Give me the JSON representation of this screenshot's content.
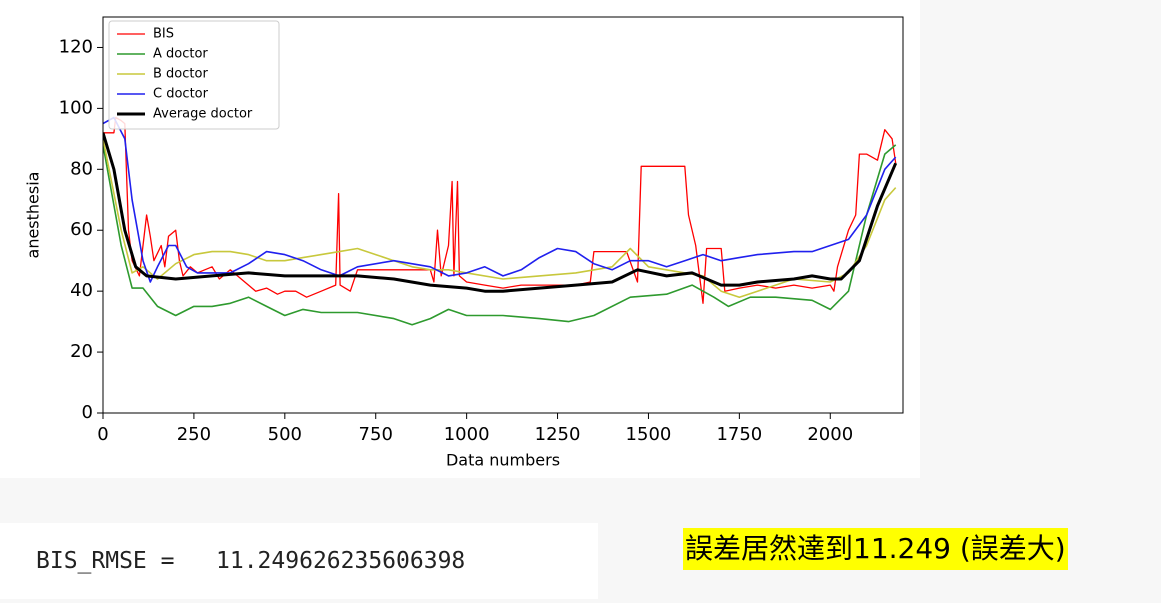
{
  "chart_data": {
    "type": "line",
    "xlabel": "Data numbers",
    "ylabel": "anesthesia",
    "xlim": [
      0,
      2200
    ],
    "ylim": [
      0,
      130
    ],
    "xticks": [
      0,
      250,
      500,
      750,
      1000,
      1250,
      1500,
      1750,
      2000
    ],
    "yticks": [
      0,
      20,
      40,
      60,
      80,
      100,
      120
    ],
    "legend": "upper left",
    "series": [
      {
        "name": "BIS",
        "color": "#ff0000",
        "width": 1.3,
        "x": [
          0,
          30,
          35,
          50,
          60,
          70,
          80,
          100,
          110,
          120,
          130,
          140,
          160,
          170,
          180,
          200,
          210,
          220,
          240,
          260,
          280,
          300,
          320,
          350,
          380,
          400,
          420,
          450,
          480,
          500,
          530,
          560,
          600,
          640,
          648,
          652,
          680,
          700,
          750,
          800,
          850,
          900,
          910,
          920,
          930,
          950,
          960,
          965,
          975,
          980,
          1000,
          1050,
          1100,
          1150,
          1200,
          1250,
          1300,
          1340,
          1350,
          1400,
          1440,
          1470,
          1480,
          1500,
          1600,
          1610,
          1630,
          1650,
          1660,
          1700,
          1710,
          1750,
          1800,
          1850,
          1900,
          1950,
          2000,
          2010,
          2020,
          2050,
          2070,
          2080,
          2100,
          2130,
          2150,
          2170,
          2180
        ],
        "values": [
          92,
          92,
          97,
          96,
          95,
          60,
          50,
          45,
          55,
          65,
          58,
          50,
          55,
          48,
          58,
          60,
          50,
          45,
          48,
          46,
          47,
          48,
          44,
          47,
          44,
          42,
          40,
          41,
          39,
          40,
          40,
          38,
          40,
          42,
          72,
          42,
          40,
          47,
          47,
          47,
          47,
          47,
          43,
          60,
          45,
          55,
          76,
          45,
          76,
          45,
          43,
          42,
          41,
          42,
          42,
          42,
          42,
          43,
          53,
          53,
          53,
          43,
          81,
          81,
          81,
          65,
          55,
          36,
          54,
          54,
          40,
          41,
          42,
          41,
          42,
          41,
          42,
          40,
          48,
          60,
          65,
          85,
          85,
          83,
          93,
          90,
          82
        ]
      },
      {
        "name": "A doctor",
        "color": "#2e9a2e",
        "width": 1.6,
        "x": [
          0,
          50,
          80,
          110,
          150,
          200,
          250,
          300,
          350,
          400,
          450,
          500,
          550,
          600,
          700,
          800,
          850,
          900,
          950,
          1000,
          1100,
          1200,
          1280,
          1350,
          1450,
          1550,
          1620,
          1680,
          1720,
          1780,
          1850,
          1950,
          2000,
          2050,
          2100,
          2150,
          2180
        ],
        "values": [
          88,
          55,
          41,
          41,
          35,
          32,
          35,
          35,
          36,
          38,
          35,
          32,
          34,
          33,
          33,
          31,
          29,
          31,
          34,
          32,
          32,
          31,
          30,
          32,
          38,
          39,
          42,
          38,
          35,
          38,
          38,
          37,
          34,
          40,
          65,
          85,
          88
        ]
      },
      {
        "name": "B doctor",
        "color": "#c8c83c",
        "width": 1.6,
        "x": [
          0,
          50,
          80,
          110,
          150,
          200,
          250,
          300,
          350,
          400,
          450,
          500,
          550,
          600,
          650,
          700,
          750,
          800,
          850,
          900,
          950,
          1000,
          1100,
          1200,
          1300,
          1400,
          1450,
          1500,
          1600,
          1650,
          1700,
          1750,
          1800,
          1900,
          2000,
          2050,
          2100,
          2150,
          2180
        ],
        "values": [
          90,
          60,
          46,
          48,
          44,
          49,
          52,
          53,
          53,
          52,
          50,
          50,
          51,
          52,
          53,
          54,
          52,
          50,
          48,
          47,
          47,
          46,
          44,
          45,
          46,
          48,
          54,
          48,
          46,
          45,
          40,
          38,
          40,
          44,
          43,
          46,
          55,
          70,
          74
        ]
      },
      {
        "name": "C doctor",
        "color": "#2020ee",
        "width": 1.6,
        "x": [
          0,
          30,
          60,
          80,
          110,
          130,
          150,
          180,
          200,
          230,
          260,
          300,
          350,
          400,
          450,
          500,
          550,
          600,
          650,
          700,
          800,
          900,
          950,
          1000,
          1050,
          1100,
          1150,
          1200,
          1250,
          1300,
          1350,
          1400,
          1450,
          1500,
          1550,
          1600,
          1650,
          1700,
          1750,
          1800,
          1900,
          1950,
          2000,
          2050,
          2100,
          2150,
          2180
        ],
        "values": [
          95,
          97,
          90,
          70,
          50,
          43,
          48,
          55,
          55,
          48,
          46,
          46,
          46,
          49,
          53,
          52,
          50,
          47,
          45,
          48,
          50,
          48,
          45,
          46,
          48,
          45,
          47,
          51,
          54,
          53,
          49,
          47,
          50,
          50,
          48,
          50,
          52,
          50,
          51,
          52,
          53,
          53,
          55,
          57,
          65,
          80,
          84
        ]
      },
      {
        "name": "Average doctor",
        "color": "#000000",
        "width": 3,
        "x": [
          0,
          30,
          60,
          90,
          120,
          200,
          300,
          400,
          500,
          600,
          700,
          800,
          900,
          1000,
          1050,
          1100,
          1200,
          1300,
          1400,
          1470,
          1550,
          1620,
          1700,
          1750,
          1800,
          1900,
          1950,
          2000,
          2030,
          2080,
          2130,
          2180
        ],
        "values": [
          92,
          80,
          60,
          48,
          45,
          44,
          45,
          46,
          45,
          45,
          45,
          44,
          42,
          41,
          40,
          40,
          41,
          42,
          43,
          47,
          45,
          46,
          42,
          42,
          43,
          44,
          45,
          44,
          44,
          50,
          68,
          82
        ]
      }
    ]
  },
  "output": {
    "text": "BIS_RMSE =   11.249626235606398"
  },
  "annotation": "誤差居然達到11.249 (誤差大)"
}
